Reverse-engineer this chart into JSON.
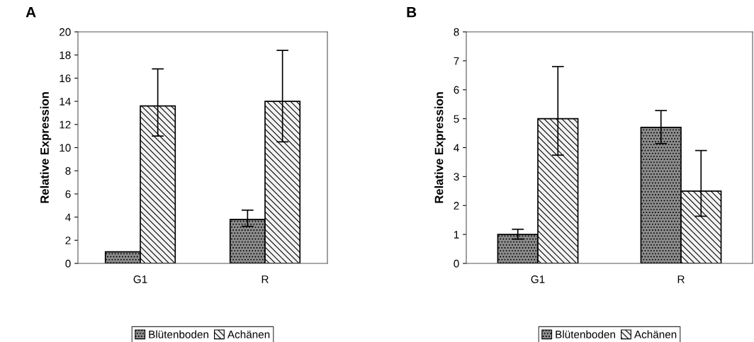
{
  "chart_data": [
    {
      "type": "bar",
      "title": "A",
      "ylabel": "Relative Expression",
      "categories": [
        "G1",
        "R"
      ],
      "ylim": [
        0,
        20
      ],
      "yticks": [
        0,
        2,
        4,
        6,
        8,
        10,
        12,
        14,
        16,
        18,
        20
      ],
      "grid": false,
      "legend": "bottom",
      "series": [
        {
          "name": "Blütenboden",
          "color": "#8c8c8c",
          "values": [
            1.0,
            3.8
          ],
          "errors": [
            null,
            [
              3.2,
              4.6
            ]
          ]
        },
        {
          "name": "Achänen",
          "color": "#f2f2f2",
          "values": [
            13.6,
            14.0
          ],
          "errors": [
            [
              11.0,
              16.8
            ],
            [
              10.5,
              18.4
            ]
          ]
        }
      ]
    },
    {
      "type": "bar",
      "title": "B",
      "ylabel": "Relative Expression",
      "categories": [
        "G1",
        "R"
      ],
      "ylim": [
        0,
        8
      ],
      "yticks": [
        0,
        1,
        2,
        3,
        4,
        5,
        6,
        7,
        8
      ],
      "grid": false,
      "legend": "bottom",
      "series": [
        {
          "name": "Blütenboden",
          "color": "#8c8c8c",
          "values": [
            1.0,
            4.7
          ],
          "errors": [
            [
              0.84,
              1.18
            ],
            [
              4.14,
              5.28
            ]
          ]
        },
        {
          "name": "Achänen",
          "color": "#f2f2f2",
          "values": [
            5.0,
            2.5
          ],
          "errors": [
            [
              3.74,
              6.8
            ],
            [
              1.63,
              3.9
            ]
          ]
        }
      ]
    }
  ]
}
